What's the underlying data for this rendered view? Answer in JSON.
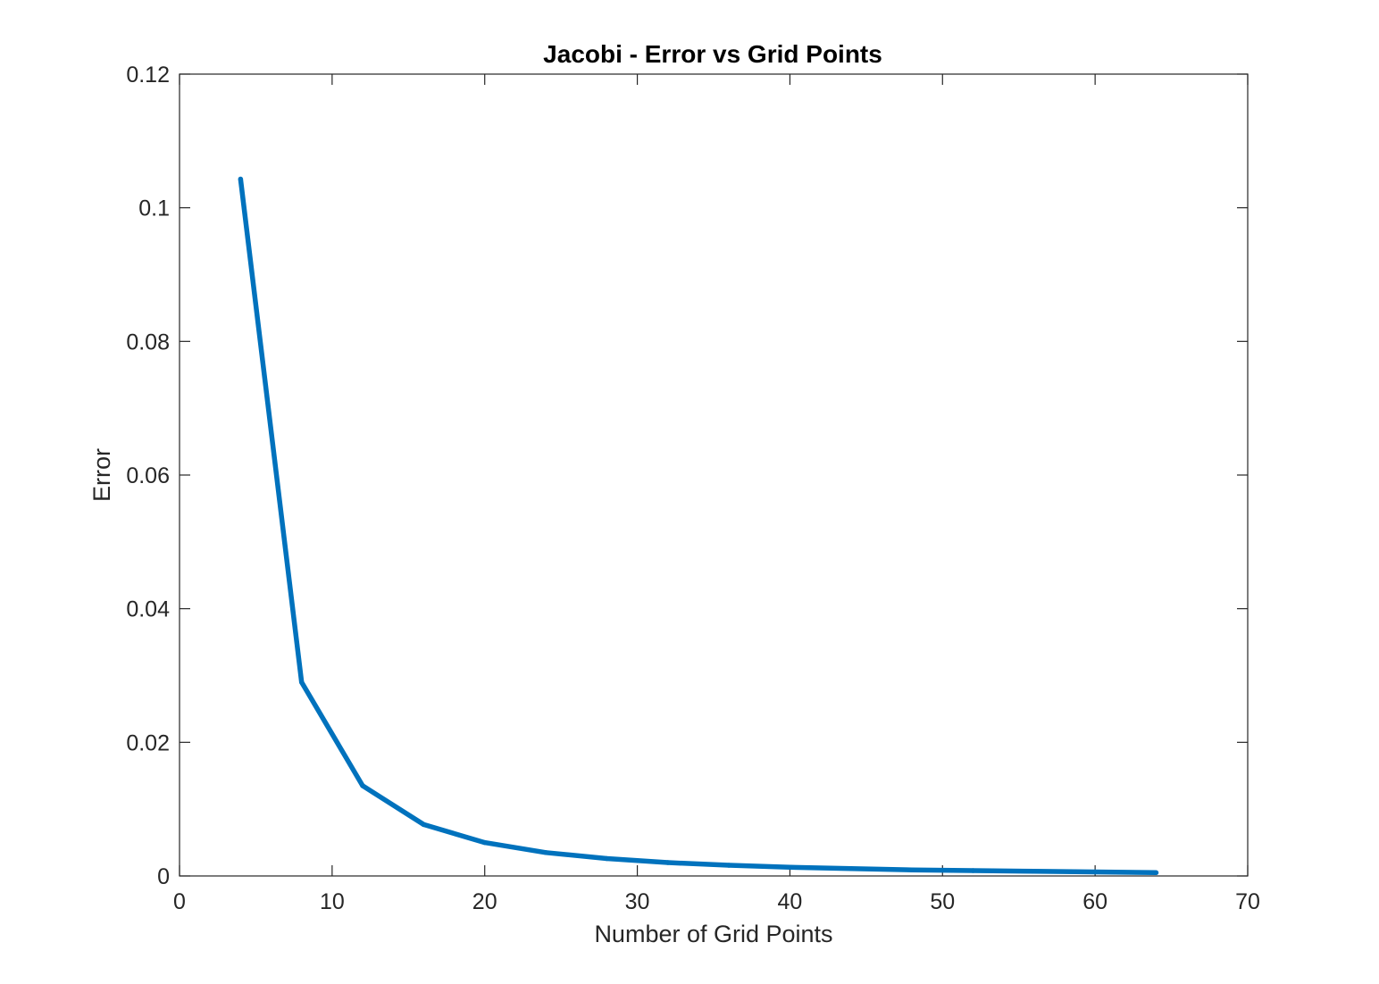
{
  "chart_data": {
    "type": "line",
    "title": "Jacobi - Error vs Grid Points",
    "xlabel": "Number of Grid Points",
    "ylabel": "Error",
    "xlim": [
      0,
      70
    ],
    "ylim": [
      0,
      0.12
    ],
    "xticks": [
      "0",
      "10",
      "20",
      "30",
      "40",
      "50",
      "60",
      "70"
    ],
    "yticks": [
      "0",
      "0.02",
      "0.04",
      "0.06",
      "0.08",
      "0.1",
      "0.12"
    ],
    "grid": false,
    "series": [
      {
        "color": "#0072BD",
        "x": [
          4,
          8,
          12,
          16,
          20,
          24,
          28,
          32,
          36,
          40,
          44,
          48,
          52,
          56,
          60,
          64
        ],
        "y": [
          0.1043,
          0.029,
          0.0135,
          0.0077,
          0.005,
          0.0035,
          0.0026,
          0.002,
          0.0016,
          0.0013,
          0.0011,
          0.0009,
          0.0008,
          0.0007,
          0.0006,
          0.0005
        ]
      }
    ]
  }
}
